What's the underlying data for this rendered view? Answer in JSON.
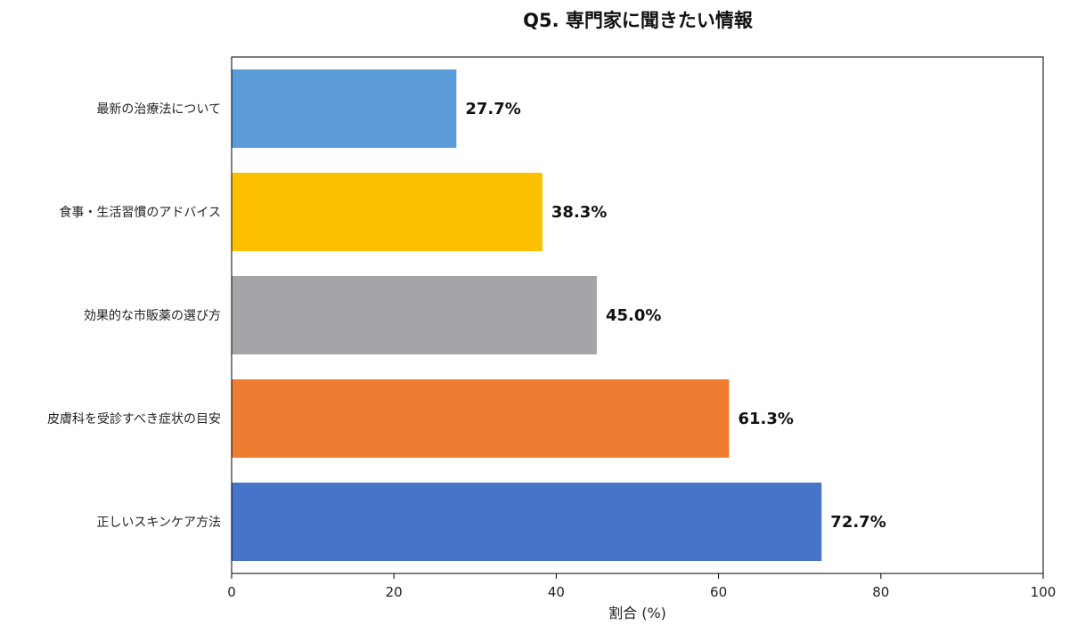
{
  "chart_data": {
    "type": "bar",
    "orientation": "horizontal",
    "title": "Q5. 専門家に聞きたい情報",
    "xlabel": "割合 (%)",
    "ylabel": "",
    "xlim": [
      0,
      100
    ],
    "xticks": [
      "0",
      "20",
      "40",
      "60",
      "80",
      "100"
    ],
    "grid": false,
    "categories": [
      "最新の治療法について",
      "食事・生活習慣のアドバイス",
      "効果的な市販薬の選び方",
      "皮膚科を受診すべき症状の目安",
      "正しいスキンケア方法"
    ],
    "values": [
      27.7,
      38.3,
      45.0,
      61.3,
      72.7
    ],
    "value_labels": [
      "27.7%",
      "38.3%",
      "45.0%",
      "61.3%",
      "72.7%"
    ],
    "colors": [
      "#5b9bd8",
      "#fcc000",
      "#a6a4a9",
      "#ee7c31",
      "#4574c8"
    ]
  }
}
